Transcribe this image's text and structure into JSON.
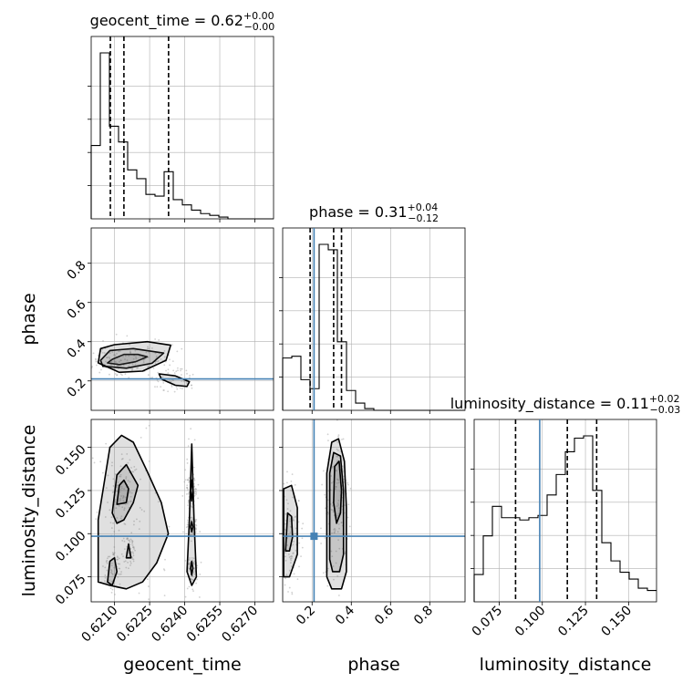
{
  "chart_data": {
    "type": "corner",
    "parameters": [
      {
        "name": "geocent_time",
        "xlabel": "geocent_time",
        "title": "geocent_time = 0.62",
        "title_sup": "+0.00",
        "title_sub": "−0.00",
        "range": [
          0.62,
          0.6278
        ],
        "ticks": [
          0.621,
          0.6225,
          0.624,
          0.6255,
          0.627
        ],
        "tick_labels": [
          "0.6210",
          "0.6225",
          "0.6240",
          "0.6255",
          "0.6270"
        ],
        "hist_edges_start": 0.62,
        "hist_bin_width": 0.00039,
        "hist_counts": [
          0.42,
          0.95,
          0.53,
          0.44,
          0.28,
          0.23,
          0.14,
          0.13,
          0.27,
          0.11,
          0.08,
          0.05,
          0.03,
          0.02,
          0.01,
          0,
          0,
          0,
          0,
          0
        ],
        "quantiles": [
          0.62082,
          0.6214,
          0.62331
        ],
        "truth": null
      },
      {
        "name": "phase",
        "xlabel": "phase",
        "ylabel": "phase",
        "title": "phase = 0.31",
        "title_sup": "+0.04",
        "title_sub": "−0.12",
        "range": [
          0.05,
          0.98
        ],
        "ticks": [
          0.2,
          0.4,
          0.6,
          0.8
        ],
        "tick_labels": [
          "0.2",
          "0.4",
          "0.6",
          "0.8"
        ],
        "hist_edges_start": 0.05,
        "hist_bin_width": 0.0465,
        "hist_counts": [
          0.29,
          0.3,
          0.17,
          0.12,
          0.92,
          0.89,
          0.38,
          0.11,
          0.04,
          0.01,
          0,
          0,
          0,
          0,
          0,
          0,
          0,
          0,
          0,
          0
        ],
        "quantiles": [
          0.19,
          0.31,
          0.35
        ],
        "truth": 0.21
      },
      {
        "name": "luminosity_distance",
        "xlabel": "luminosity_distance",
        "ylabel": "luminosity_distance",
        "title": "luminosity_distance = 0.11",
        "title_sup": "+0.02",
        "title_sub": "−0.03",
        "range": [
          0.0605,
          0.1662
        ],
        "ticks": [
          0.075,
          0.1,
          0.125,
          0.15
        ],
        "tick_labels": [
          "0.075",
          "0.100",
          "0.125",
          "0.150"
        ],
        "hist_edges_start": 0.0605,
        "hist_bin_width": 0.005285,
        "hist_counts": [
          0.12,
          0.29,
          0.42,
          0.37,
          0.37,
          0.36,
          0.37,
          0.38,
          0.47,
          0.56,
          0.66,
          0.72,
          0.73,
          0.49,
          0.26,
          0.18,
          0.13,
          0.1,
          0.06,
          0.05
        ],
        "quantiles": [
          0.0845,
          0.1145,
          0.1315
        ],
        "truth": 0.0985
      }
    ],
    "pairs": [
      {
        "x": "geocent_time",
        "y": "phase",
        "contours": [
          [
            [
              0.6209,
              0.31
            ],
            [
              0.6214,
              0.335
            ],
            [
              0.622,
              0.335
            ],
            [
              0.6224,
              0.323
            ],
            [
              0.6219,
              0.298
            ],
            [
              0.6212,
              0.283
            ],
            [
              0.6207,
              0.292
            ]
          ],
          [
            [
              0.6204,
              0.305
            ],
            [
              0.6208,
              0.355
            ],
            [
              0.6218,
              0.365
            ],
            [
              0.6231,
              0.342
            ],
            [
              0.6226,
              0.29
            ],
            [
              0.6215,
              0.265
            ],
            [
              0.6205,
              0.275
            ]
          ],
          [
            [
              0.6229,
              0.236
            ],
            [
              0.6236,
              0.226
            ],
            [
              0.6242,
              0.196
            ],
            [
              0.6241,
              0.172
            ],
            [
              0.6236,
              0.178
            ],
            [
              0.623,
              0.21
            ]
          ],
          [
            [
              0.6203,
              0.292
            ],
            [
              0.6204,
              0.365
            ],
            [
              0.621,
              0.385
            ],
            [
              0.6224,
              0.4
            ],
            [
              0.6234,
              0.382
            ],
            [
              0.6232,
              0.305
            ],
            [
              0.6222,
              0.25
            ],
            [
              0.6212,
              0.244
            ]
          ]
        ],
        "truth": [
          null,
          0.21
        ]
      },
      {
        "x": "geocent_time",
        "y": "luminosity_distance",
        "contours": [
          [
            [
              0.6203,
              0.072
            ],
            [
              0.6203,
              0.108
            ],
            [
              0.6208,
              0.15
            ],
            [
              0.6213,
              0.157
            ],
            [
              0.6218,
              0.153
            ],
            [
              0.6224,
              0.136
            ],
            [
              0.623,
              0.118
            ],
            [
              0.6233,
              0.1
            ],
            [
              0.6228,
              0.083
            ],
            [
              0.6222,
              0.072
            ],
            [
              0.6215,
              0.068
            ],
            [
              0.6208,
              0.07
            ]
          ],
          [
            [
              0.6209,
              0.112
            ],
            [
              0.6211,
              0.134
            ],
            [
              0.6215,
              0.14
            ],
            [
              0.622,
              0.128
            ],
            [
              0.6218,
              0.118
            ],
            [
              0.6214,
              0.108
            ],
            [
              0.6211,
              0.106
            ]
          ],
          [
            [
              0.6211,
              0.117
            ],
            [
              0.6212,
              0.128
            ],
            [
              0.6214,
              0.131
            ],
            [
              0.6216,
              0.126
            ],
            [
              0.6215,
              0.118
            ]
          ],
          [
            [
              0.6207,
              0.072
            ],
            [
              0.6208,
              0.084
            ],
            [
              0.621,
              0.086
            ],
            [
              0.6211,
              0.078
            ],
            [
              0.6209,
              0.07
            ]
          ],
          [
            [
              0.6215,
              0.086
            ],
            [
              0.6216,
              0.094
            ],
            [
              0.6217,
              0.086
            ]
          ],
          [
            [
              0.6241,
              0.078
            ],
            [
              0.6242,
              0.108
            ],
            [
              0.6243,
              0.152
            ],
            [
              0.6244,
              0.108
            ],
            [
              0.6245,
              0.075
            ],
            [
              0.6243,
              0.07
            ]
          ],
          [
            [
              0.62425,
              0.125
            ],
            [
              0.6243,
              0.131
            ],
            [
              0.62435,
              0.125
            ],
            [
              0.6243,
              0.119
            ]
          ],
          [
            [
              0.62425,
              0.08
            ],
            [
              0.6243,
              0.084
            ],
            [
              0.62435,
              0.08
            ],
            [
              0.6243,
              0.076
            ]
          ],
          [
            [
              0.62425,
              0.104
            ],
            [
              0.6243,
              0.107
            ],
            [
              0.62435,
              0.104
            ],
            [
              0.6243,
              0.101
            ]
          ]
        ],
        "truth": [
          null,
          0.0985
        ]
      },
      {
        "x": "phase",
        "y": "luminosity_distance",
        "contours": [
          [
            [
              0.275,
              0.075
            ],
            [
              0.275,
              0.135
            ],
            [
              0.3,
              0.153
            ],
            [
              0.335,
              0.155
            ],
            [
              0.365,
              0.142
            ],
            [
              0.375,
              0.115
            ],
            [
              0.375,
              0.078
            ],
            [
              0.35,
              0.068
            ],
            [
              0.3,
              0.068
            ]
          ],
          [
            [
              0.29,
              0.085
            ],
            [
              0.29,
              0.135
            ],
            [
              0.31,
              0.147
            ],
            [
              0.345,
              0.145
            ],
            [
              0.36,
              0.125
            ],
            [
              0.36,
              0.088
            ],
            [
              0.34,
              0.078
            ],
            [
              0.305,
              0.078
            ]
          ],
          [
            [
              0.31,
              0.118
            ],
            [
              0.315,
              0.139
            ],
            [
              0.338,
              0.142
            ],
            [
              0.35,
              0.125
            ],
            [
              0.345,
              0.112
            ],
            [
              0.325,
              0.106
            ]
          ],
          [
            [
              0.055,
              0.075
            ],
            [
              0.055,
              0.126
            ],
            [
              0.095,
              0.128
            ],
            [
              0.125,
              0.115
            ],
            [
              0.125,
              0.088
            ],
            [
              0.085,
              0.075
            ]
          ],
          [
            [
              0.065,
              0.09
            ],
            [
              0.075,
              0.112
            ],
            [
              0.095,
              0.11
            ],
            [
              0.1,
              0.098
            ],
            [
              0.085,
              0.09
            ]
          ]
        ],
        "truth": [
          0.21,
          0.0985
        ]
      }
    ],
    "truth_color": "#4682b4",
    "grid": true,
    "line_color": "#000000"
  }
}
